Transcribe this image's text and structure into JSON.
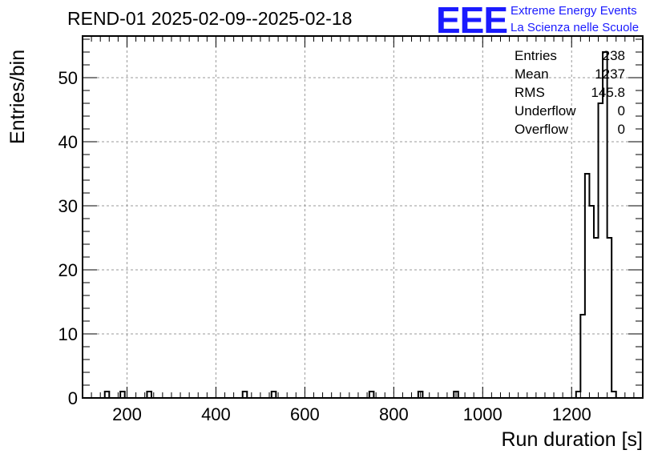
{
  "chart_data": {
    "type": "histogram",
    "title": "REND-01 2025-02-09--2025-02-18",
    "xlabel": "Run duration [s]",
    "ylabel": "Entries/bin",
    "xlim": [
      100,
      1360
    ],
    "ylim": [
      0,
      56.5
    ],
    "x_ticks": [
      200,
      400,
      600,
      800,
      1000,
      1200
    ],
    "y_ticks": [
      0,
      10,
      20,
      30,
      40,
      50
    ],
    "grid": true,
    "bins": [
      {
        "x0": 150,
        "x1": 160,
        "count": 1
      },
      {
        "x0": 185,
        "x1": 195,
        "count": 1
      },
      {
        "x0": 245,
        "x1": 255,
        "count": 1
      },
      {
        "x0": 460,
        "x1": 470,
        "count": 1
      },
      {
        "x0": 525,
        "x1": 535,
        "count": 1
      },
      {
        "x0": 745,
        "x1": 755,
        "count": 1
      },
      {
        "x0": 855,
        "x1": 865,
        "count": 1
      },
      {
        "x0": 935,
        "x1": 945,
        "count": 1
      },
      {
        "x0": 1210,
        "x1": 1220,
        "count": 1
      },
      {
        "x0": 1220,
        "x1": 1230,
        "count": 13
      },
      {
        "x0": 1230,
        "x1": 1240,
        "count": 35
      },
      {
        "x0": 1240,
        "x1": 1250,
        "count": 30
      },
      {
        "x0": 1250,
        "x1": 1260,
        "count": 25
      },
      {
        "x0": 1260,
        "x1": 1270,
        "count": 46
      },
      {
        "x0": 1270,
        "x1": 1280,
        "count": 54
      },
      {
        "x0": 1280,
        "x1": 1290,
        "count": 25
      },
      {
        "x0": 1290,
        "x1": 1300,
        "count": 1
      }
    ],
    "stats": [
      {
        "label": "Entries",
        "value": "238"
      },
      {
        "label": "Mean",
        "value": "1237"
      },
      {
        "label": "RMS",
        "value": "145.8"
      },
      {
        "label": "Underflow",
        "value": "0"
      },
      {
        "label": "Overflow",
        "value": "0"
      }
    ],
    "logo": {
      "text": "EEE",
      "line1": "Extreme Energy Events",
      "line2": "La Scienza nelle Scuole",
      "color": "#1a1aff"
    }
  }
}
